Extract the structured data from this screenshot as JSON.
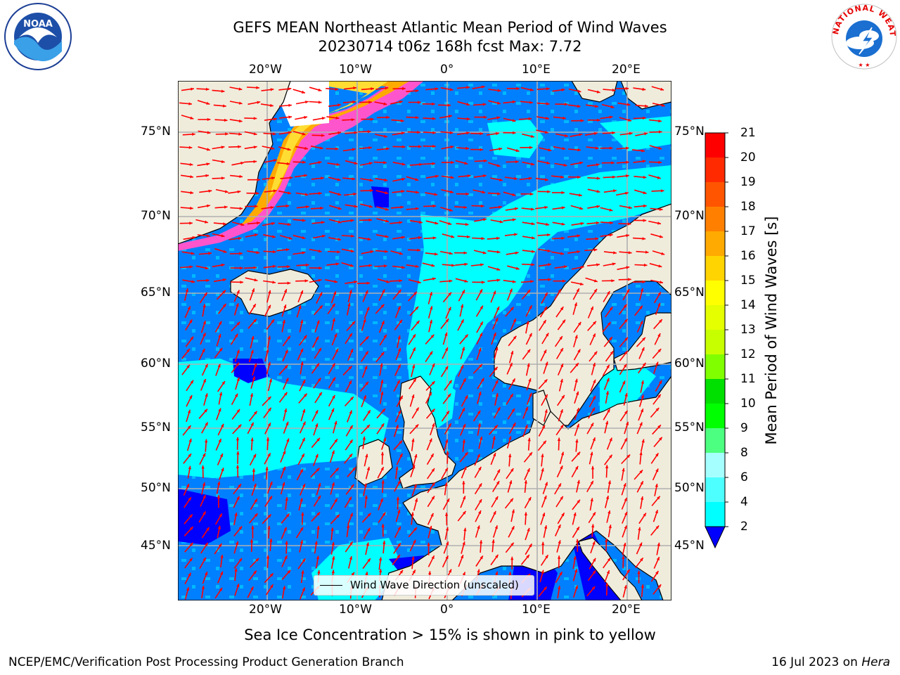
{
  "header": {
    "title_line1": "GEFS MEAN Northeast Atlantic Mean Period of Wind Waves",
    "title_line2": "20230714 t06z 168h fcst   Max: 7.72"
  },
  "logos": {
    "noaa_text": "NOAA",
    "nws_text": "NATIONAL WEATHER SERVICE"
  },
  "map": {
    "lon_labels": [
      "20°W",
      "10°W",
      "0°",
      "10°E",
      "20°E"
    ],
    "lat_labels": [
      "75°N",
      "70°N",
      "65°N",
      "60°N",
      "55°N",
      "50°N",
      "45°N"
    ],
    "legend_label": "Wind Wave Direction (unscaled)",
    "colors": {
      "land": "#efecdc",
      "ice": "#ffffff",
      "band_2_4": "#0080ff",
      "band_4_6": "#00ffff",
      "deep_blue": "#0000ff",
      "arrow": "#ff0000",
      "grid": "#b0b0b0"
    }
  },
  "colorbar": {
    "label": "Mean Period of Wind Waves [s]",
    "ticks": [
      "21",
      "20",
      "19",
      "18",
      "17",
      "16",
      "15",
      "14",
      "13",
      "12",
      "11",
      "10",
      "9",
      "8",
      "6",
      "4",
      "2"
    ],
    "colors": [
      "#ff0000",
      "#ff2a00",
      "#ff5500",
      "#ff8000",
      "#ffaa00",
      "#ffd400",
      "#ffff00",
      "#e5ff00",
      "#c8ff00",
      "#80ff00",
      "#00e000",
      "#00ff00",
      "#4dff80",
      "#a6ffff",
      "#4dffff",
      "#00ffff",
      "#0080ff"
    ],
    "extend_color": "#0000ff"
  },
  "caption": "Sea Ice Concentration > 15% is shown in pink to yellow",
  "footer": {
    "left": "NCEP/EMC/Verification Post Processing Product Generation Branch",
    "right_date": "16 Jul 2023 on",
    "right_host": "Hera"
  }
}
